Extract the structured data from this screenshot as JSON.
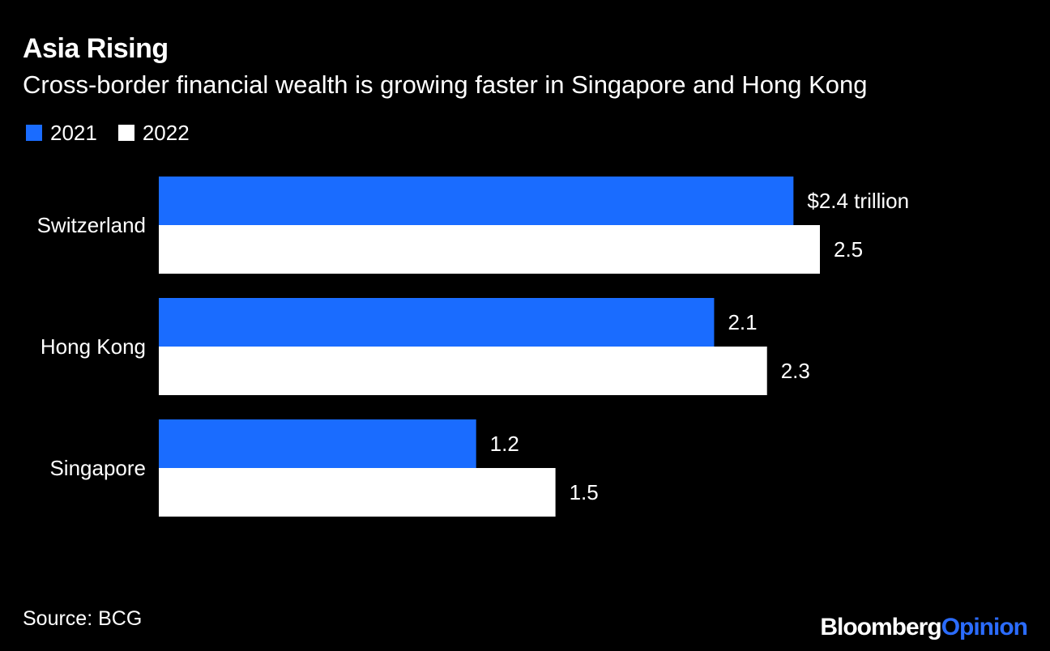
{
  "header": {
    "title": "Asia Rising",
    "subtitle": "Cross-border financial wealth is growing faster in Singapore and Hong Kong"
  },
  "colors": {
    "background": "#000000",
    "series_2021": "#1a6cff",
    "series_2022": "#ffffff",
    "text": "#ffffff",
    "brand_accent": "#2b6cff"
  },
  "footer": {
    "source": "Source: BCG",
    "brand_part1": "Bloomberg",
    "brand_part2": "Opinion"
  },
  "chart_data": {
    "type": "bar",
    "orientation": "horizontal",
    "categories": [
      "Switzerland",
      "Hong Kong",
      "Singapore"
    ],
    "series": [
      {
        "name": "2021",
        "values": [
          2.4,
          2.1,
          1.2
        ],
        "labels": [
          "$2.4 trillion",
          "2.1",
          "1.2"
        ]
      },
      {
        "name": "2022",
        "values": [
          2.5,
          2.3,
          1.5
        ],
        "labels": [
          "2.5",
          "2.3",
          "1.5"
        ]
      }
    ],
    "title": "Asia Rising",
    "subtitle": "Cross-border financial wealth is growing faster in Singapore and Hong Kong",
    "xlabel": "",
    "ylabel": "",
    "xlim": [
      0,
      2.5
    ],
    "grid": false,
    "legend": "top-left"
  }
}
